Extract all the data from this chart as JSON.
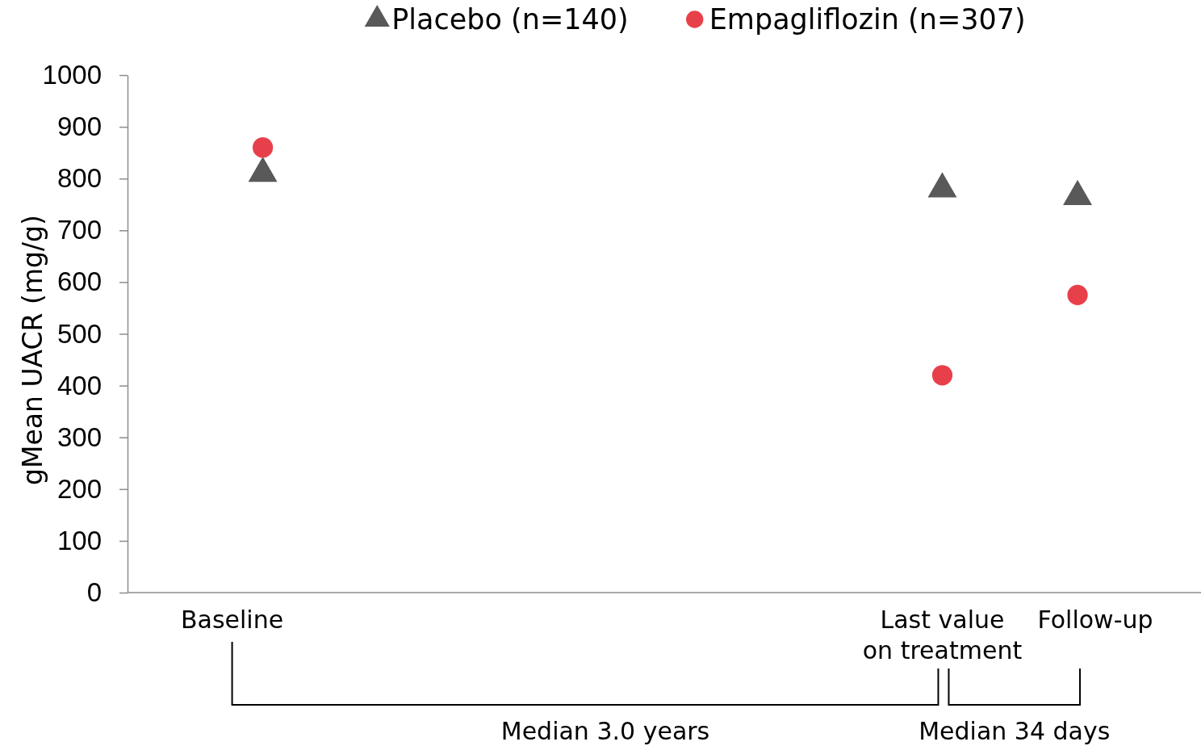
{
  "chart_data": {
    "type": "scatter",
    "ylabel": "gMean UACR (mg/g)",
    "categories": [
      "Baseline",
      "Last value on treatment",
      "Follow-up"
    ],
    "ylim": [
      0,
      1000
    ],
    "yticks": [
      0,
      100,
      200,
      300,
      400,
      500,
      600,
      700,
      800,
      900,
      1000
    ],
    "grid": false,
    "legend": "top",
    "series": [
      {
        "name": "Placebo (n=140)",
        "color": "#595959",
        "marker": "triangle",
        "values": [
          810,
          780,
          765
        ]
      },
      {
        "name": "Empagliflozin (n=307)",
        "color": "#e8404a",
        "marker": "circle",
        "values": [
          860,
          420,
          575
        ]
      }
    ],
    "annotations": [
      "Median 3.0 years",
      "Median 34 days"
    ]
  }
}
